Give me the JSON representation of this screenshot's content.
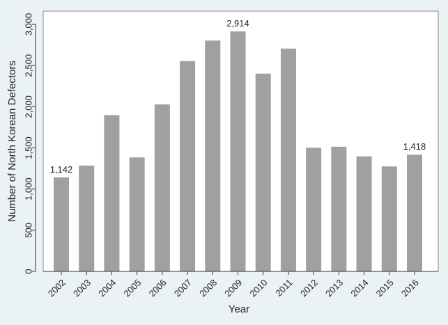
{
  "chart_data": {
    "type": "bar",
    "title": "",
    "xlabel": "Year",
    "ylabel": "Number of North Korean Defectors",
    "categories": [
      "2002",
      "2003",
      "2004",
      "2005",
      "2006",
      "2007",
      "2008",
      "2009",
      "2010",
      "2011",
      "2012",
      "2013",
      "2014",
      "2015",
      "2016"
    ],
    "values": [
      1142,
      1285,
      1898,
      1384,
      2028,
      2554,
      2803,
      2914,
      2402,
      2706,
      1502,
      1514,
      1397,
      1275,
      1418
    ],
    "data_labels": [
      {
        "category": "2002",
        "text": "1,142"
      },
      {
        "category": "2009",
        "text": "2,914"
      },
      {
        "category": "2016",
        "text": "1,418"
      }
    ],
    "ylim": [
      0,
      3000
    ],
    "yticks": [
      0,
      500,
      1000,
      1500,
      2000,
      2500,
      3000
    ],
    "ytick_labels": [
      "0",
      "500",
      "1,000",
      "1,500",
      "2,000",
      "2,500",
      "3,000"
    ],
    "grid": false,
    "legend": "none",
    "colors": {
      "bar": "#a0a0a0",
      "background": "#eaf2f3",
      "plot_background": "#ffffff",
      "axis": "#333333"
    }
  }
}
